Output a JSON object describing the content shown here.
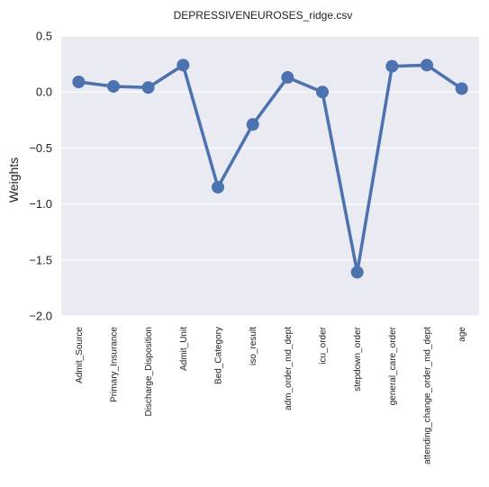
{
  "chart_data": {
    "type": "line",
    "title": "DEPRESSIVENEUROSES_ridge.csv",
    "xlabel": "",
    "ylabel": "Weights",
    "ylim": [
      -2.0,
      0.5
    ],
    "yticks": [
      "0.5",
      "0.0",
      "−0.5",
      "−1.0",
      "−1.5",
      "−2.0"
    ],
    "ytick_values": [
      0.5,
      0.0,
      -0.5,
      -1.0,
      -1.5,
      -2.0
    ],
    "categories": [
      "Admit_Source",
      "Primary_Insurance",
      "Discharge_Disposition",
      "Admit_Unit",
      "Bed_Category",
      "iso_result",
      "adm_order_md_dept",
      "icu_order",
      "stepdown_order",
      "general_care_order",
      "attending_change_order_md_dept",
      "age"
    ],
    "values": [
      0.09,
      0.05,
      0.04,
      0.24,
      -0.85,
      -0.29,
      0.13,
      0.0,
      -1.61,
      0.23,
      0.24,
      0.03
    ],
    "grid": true,
    "colors": {
      "line": "#4c72b0",
      "background": "#eaeaf2",
      "grid": "#ffffff"
    }
  }
}
